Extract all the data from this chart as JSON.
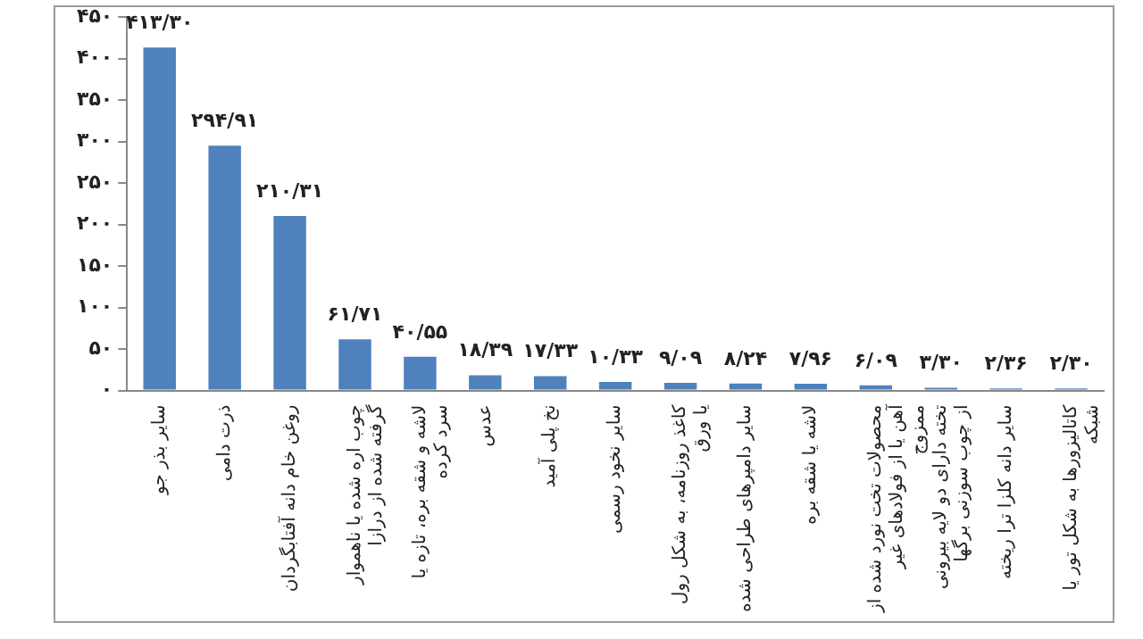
{
  "chart_data": {
    "type": "bar",
    "categories": [
      "سایر بذر جو",
      "ذرت دامی",
      "روغن خام دانه آفتابگردان",
      "چوب اره شده یا ناهموار گرفته شده از درازا",
      "لاشه و شقه بره، تازه یا سرد کرده",
      "عدس",
      "نخ پلی آمید",
      "سایر نخود رسمی",
      "کاغذ روزنامه، به شکل رول یا ورق",
      "سایر دامپرهای طراحی شده",
      "لاشه یا شقه بره",
      "محصولات تخت نورد شده از آهن یا از فولادهای غیر ممزوج",
      "تخته دارای دو لایه بیرونی از چوب سوزنی برگها",
      "سایر دانه کلزا ترا ریخته",
      "کاتالیزورها به شکل تور یا شبکه"
    ],
    "values": [
      413.3,
      294.91,
      210.31,
      61.71,
      40.55,
      18.39,
      17.33,
      10.33,
      9.09,
      8.24,
      7.96,
      6.09,
      3.3,
      2.36,
      2.3
    ],
    "value_labels": [
      "۴۱۳/۳۰",
      "۲۹۴/۹۱",
      "۲۱۰/۳۱",
      "۶۱/۷۱",
      "۴۰/۵۵",
      "۱۸/۳۹",
      "۱۷/۳۳",
      "۱۰/۳۳",
      "۹/۰۹",
      "۸/۲۴",
      "۷/۹۶",
      "۶/۰۹",
      "۳/۳۰",
      "۲/۳۶",
      "۲/۳۰"
    ],
    "color": "#4f81bd",
    "ylim": [
      0,
      450
    ],
    "yticks": [
      {
        "value": 0,
        "label": "۰"
      },
      {
        "value": 50,
        "label": "۵۰"
      },
      {
        "value": 100,
        "label": "۱۰۰"
      },
      {
        "value": 150,
        "label": "۱۵۰"
      },
      {
        "value": 200,
        "label": "۲۰۰"
      },
      {
        "value": 250,
        "label": "۲۵۰"
      },
      {
        "value": 300,
        "label": "۳۰۰"
      },
      {
        "value": 350,
        "label": "۳۵۰"
      },
      {
        "value": 400,
        "label": "۴۰۰"
      },
      {
        "value": 450,
        "label": "۴۵۰"
      }
    ],
    "grid": false,
    "legend": false
  }
}
